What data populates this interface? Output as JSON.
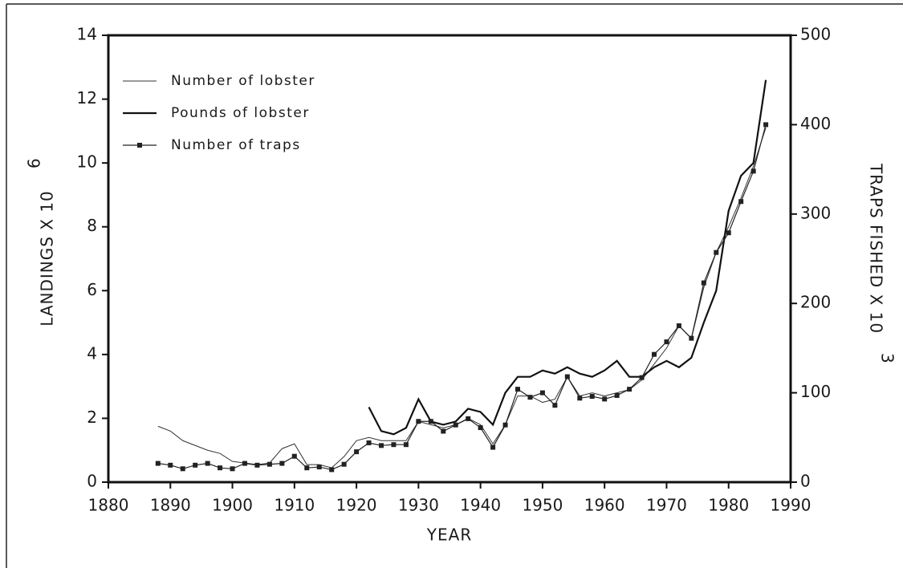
{
  "chart_data": {
    "type": "line",
    "xlabel": "YEAR",
    "ylabel": "LANDINGS X 10",
    "ylabel_exponent": "6",
    "y2label": "TRAPS FISHED X 10",
    "y2label_exponent": "3",
    "xlim": [
      1880,
      1990
    ],
    "xticks": [
      1880,
      1890,
      1900,
      1910,
      1920,
      1930,
      1940,
      1950,
      1960,
      1970,
      1980,
      1990
    ],
    "ylim": [
      0,
      14
    ],
    "yticks": [
      0,
      2,
      4,
      6,
      8,
      10,
      12,
      14
    ],
    "y2lim": [
      0,
      500
    ],
    "y2ticks": [
      0,
      100,
      200,
      300,
      400,
      500
    ],
    "legend": "upper left",
    "series": [
      {
        "name": "Number of lobster",
        "color": "#333333",
        "width": 1,
        "x": [
          1888,
          1890,
          1892,
          1894,
          1896,
          1898,
          1900,
          1902,
          1904,
          1906,
          1908,
          1910,
          1912,
          1914,
          1916,
          1918,
          1920,
          1922,
          1924,
          1926,
          1928,
          1930,
          1932,
          1934,
          1936,
          1938,
          1940,
          1942,
          1944,
          1946,
          1948,
          1950,
          1952,
          1954,
          1956,
          1958,
          1960,
          1962,
          1964,
          1966,
          1968,
          1970,
          1972,
          1974,
          1976,
          1978,
          1980,
          1982,
          1984,
          1986
        ],
        "values": [
          1.75,
          1.6,
          1.3,
          1.15,
          1.0,
          0.9,
          0.65,
          0.6,
          0.55,
          0.6,
          1.05,
          1.2,
          0.55,
          0.55,
          0.45,
          0.8,
          1.3,
          1.4,
          1.3,
          1.3,
          1.3,
          1.9,
          1.8,
          1.7,
          1.8,
          2.0,
          1.8,
          1.2,
          1.8,
          2.7,
          2.7,
          2.5,
          2.6,
          3.3,
          2.7,
          2.8,
          2.7,
          2.8,
          2.9,
          3.2,
          3.7,
          4.2,
          4.9,
          4.5,
          6.1,
          7.2,
          8.0,
          8.9,
          9.9,
          11.1
        ]
      },
      {
        "name": "Pounds of lobster",
        "color": "#111111",
        "width": 2.2,
        "x": [
          1922,
          1924,
          1926,
          1928,
          1930,
          1932,
          1934,
          1936,
          1938,
          1940,
          1942,
          1944,
          1946,
          1948,
          1950,
          1952,
          1954,
          1956,
          1958,
          1960,
          1962,
          1964,
          1966,
          1968,
          1970,
          1972,
          1974,
          1976,
          1978,
          1980,
          1982,
          1984,
          1986
        ],
        "values": [
          2.35,
          1.6,
          1.5,
          1.7,
          2.6,
          1.9,
          1.8,
          1.9,
          2.3,
          2.2,
          1.8,
          2.8,
          3.3,
          3.3,
          3.5,
          3.4,
          3.6,
          3.4,
          3.3,
          3.5,
          3.8,
          3.3,
          3.3,
          3.6,
          3.8,
          3.6,
          3.9,
          5.0,
          6.0,
          8.5,
          9.6,
          10.0,
          12.6
        ]
      },
      {
        "name": "Number of traps",
        "color": "#222222",
        "width": 1.2,
        "axis": "y2",
        "marker": "square",
        "x": [
          1888,
          1890,
          1892,
          1894,
          1896,
          1898,
          1900,
          1902,
          1904,
          1906,
          1908,
          1910,
          1912,
          1914,
          1916,
          1918,
          1920,
          1922,
          1924,
          1926,
          1928,
          1930,
          1932,
          1934,
          1936,
          1938,
          1940,
          1942,
          1944,
          1946,
          1948,
          1950,
          1952,
          1954,
          1956,
          1958,
          1960,
          1962,
          1964,
          1966,
          1968,
          1970,
          1972,
          1974,
          1976,
          1978,
          1980,
          1982,
          1984,
          1986
        ],
        "values": [
          21,
          19,
          15,
          19,
          21,
          16,
          15,
          21,
          19,
          20,
          21,
          29,
          16,
          17,
          14,
          20,
          34,
          44,
          41,
          42,
          42,
          68,
          68,
          57,
          64,
          71,
          61,
          39,
          64,
          104,
          95,
          100,
          86,
          118,
          94,
          96,
          93,
          97,
          104,
          117,
          143,
          157,
          175,
          161,
          223,
          257,
          279,
          314,
          348,
          400
        ]
      }
    ]
  }
}
